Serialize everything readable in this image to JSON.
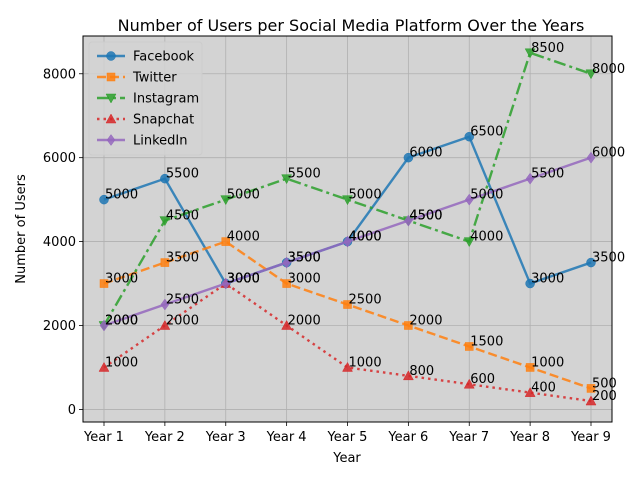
{
  "chart_data": {
    "type": "line",
    "title": "Number of Users per Social Media Platform Over the Years",
    "xlabel": "Year",
    "ylabel": "Number of Users",
    "categories": [
      "Year 1",
      "Year 2",
      "Year 3",
      "Year 4",
      "Year 5",
      "Year 6",
      "Year 7",
      "Year 8",
      "Year 9"
    ],
    "ylim": [
      -300,
      8900
    ],
    "yticks": [
      0,
      2000,
      4000,
      6000,
      8000
    ],
    "grid": true,
    "legend_position": "top-left",
    "plot_background": "#d3d3d3",
    "series": [
      {
        "name": "Facebook",
        "color": "#1f77b4",
        "line_style": "solid",
        "marker": "circle",
        "values": [
          5000,
          5500,
          3000,
          3500,
          4000,
          6000,
          6500,
          3000,
          3500
        ]
      },
      {
        "name": "Twitter",
        "color": "#ff7f0e",
        "line_style": "dashed",
        "marker": "square",
        "values": [
          3000,
          3500,
          4000,
          3000,
          2500,
          2000,
          1500,
          1000,
          500
        ]
      },
      {
        "name": "Instagram",
        "color": "#2ca02c",
        "line_style": "dashdot",
        "marker": "triangle-down",
        "values": [
          2000,
          4500,
          5000,
          5500,
          5000,
          4500,
          4000,
          8500,
          8000
        ]
      },
      {
        "name": "Snapchat",
        "color": "#d62728",
        "line_style": "dotted",
        "marker": "triangle-up",
        "values": [
          1000,
          2000,
          3000,
          2000,
          1000,
          800,
          600,
          400,
          200
        ]
      },
      {
        "name": "LinkedIn",
        "color": "#9467bd",
        "line_style": "solid",
        "marker": "diamond",
        "values": [
          2000,
          2500,
          3000,
          3500,
          4000,
          4500,
          5000,
          5500,
          6000
        ]
      }
    ]
  }
}
